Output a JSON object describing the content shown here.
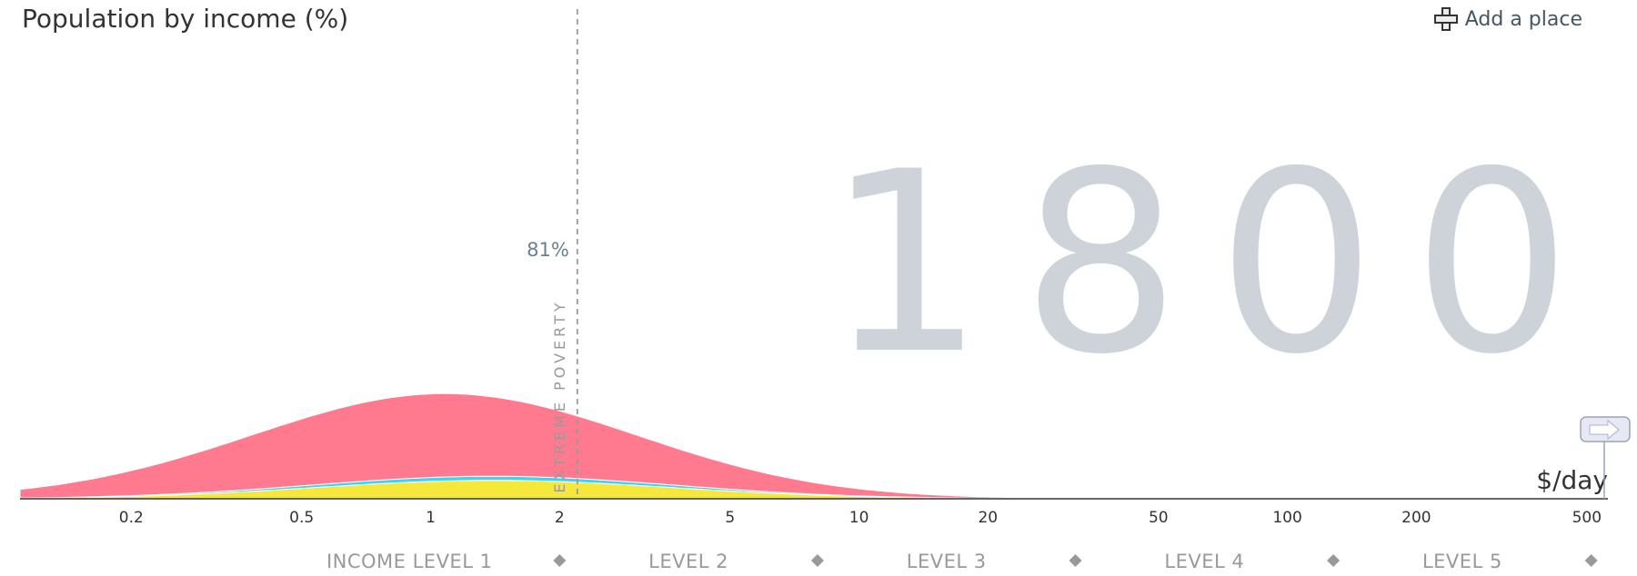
{
  "chart_data": {
    "type": "area",
    "title": "Population by income (%)",
    "year": "1800",
    "xlabel": "$/day",
    "x_scale": "log",
    "xlim": [
      0.11,
      560
    ],
    "x_ticks": [
      0.2,
      0.5,
      1,
      2,
      5,
      10,
      20,
      50,
      100,
      200,
      500
    ],
    "poverty_line": {
      "x": 2.2,
      "label": "EXTREME POVERTY",
      "share_below": "81%"
    },
    "income_levels": [
      "INCOME LEVEL 1",
      "LEVEL 2",
      "LEVEL 3",
      "LEVEL 4",
      "LEVEL 5"
    ],
    "level_boundaries": [
      2,
      8,
      32,
      128,
      512
    ],
    "series": [
      {
        "color": "#f5e83a",
        "peak_x": 1.4,
        "peak_height": 0.22,
        "spread": 0.42
      },
      {
        "color": "#3ed4ee",
        "peak_x": 1.35,
        "peak_height": 0.05,
        "spread": 0.44
      },
      {
        "color": "#ff7a8e",
        "peak_x": 1.0,
        "peak_height": 1.0,
        "spread": 0.45
      }
    ],
    "colors": {
      "axis": "#333333",
      "year": "#cdd3d8",
      "poverty_line": "#999999"
    }
  },
  "header": {
    "title": "Population by income (%)",
    "add_place_label": "Add a place"
  }
}
